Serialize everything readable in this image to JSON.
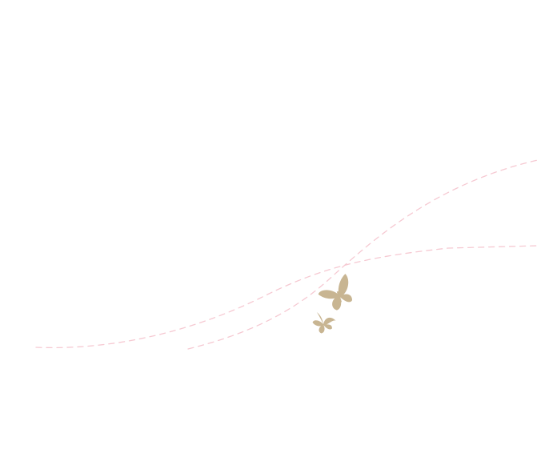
{
  "colors": {
    "background": "#ffffff",
    "path_stroke": "#f6c9d2",
    "butterfly_fill": "#c8b592"
  },
  "illustration": {
    "paths": [
      {
        "name": "flight-path-upper",
        "style": "dashed"
      },
      {
        "name": "flight-path-lower",
        "style": "dashed"
      }
    ],
    "butterflies": [
      {
        "name": "butterfly-icon-large"
      },
      {
        "name": "butterfly-icon-small"
      }
    ]
  }
}
